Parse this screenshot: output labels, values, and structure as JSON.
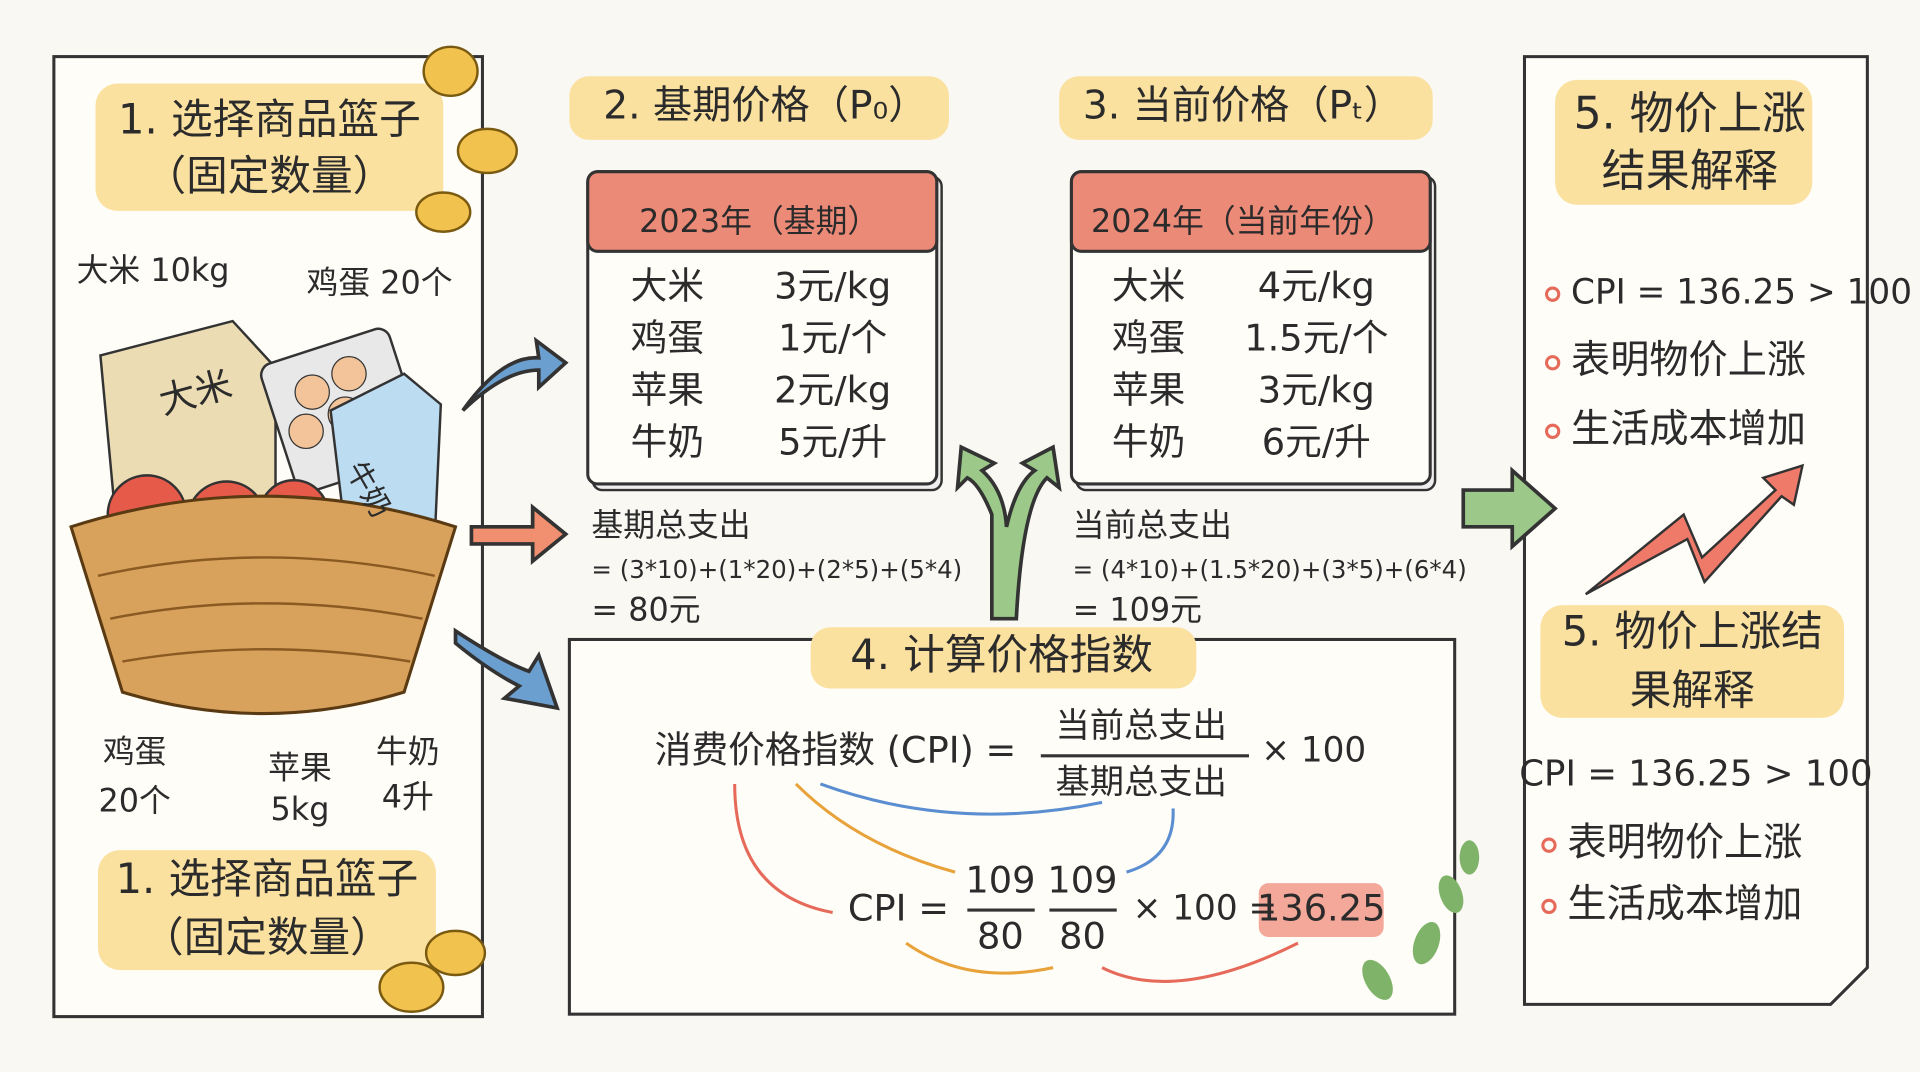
{
  "basket": {
    "title": [
      "1. 选择商品篮子",
      "（固定数量）"
    ],
    "items_top": [
      "大米 10kg",
      "鸡蛋 20个"
    ],
    "bag_label": "大米",
    "carton_label": "牛奶",
    "items_bottom": [
      [
        "鸡蛋",
        "20个"
      ],
      [
        "苹果",
        "5kg"
      ],
      [
        "牛奶",
        "4升"
      ]
    ],
    "footer_title": [
      "1. 选择商品篮子",
      "（固定数量）"
    ]
  },
  "base_prices": {
    "title": "2. 基期价格（P₀）",
    "calendar_header": "2023年（基期）",
    "rows": [
      [
        "大米",
        "3元/kg"
      ],
      [
        "鸡蛋",
        "1元/个"
      ],
      [
        "苹果",
        "2元/kg"
      ],
      [
        "牛奶",
        "5元/升"
      ]
    ],
    "total_label": "基期总支出",
    "formula": "= (3*10)+(1*20)+(2*5)+(5*4)",
    "result": "= 80元"
  },
  "current_prices": {
    "title": "3. 当前价格（Pₜ）",
    "calendar_header": "2024年（当前年份）",
    "rows": [
      [
        "大米",
        "4元/kg"
      ],
      [
        "鸡蛋",
        "1.5元/个"
      ],
      [
        "苹果",
        "3元/kg"
      ],
      [
        "牛奶",
        "6元/升"
      ]
    ],
    "total_label": "当前总支出",
    "formula": "= (4*10)+(1.5*20)+(3*5)+(6*4)",
    "result": "= 109元"
  },
  "index": {
    "title": "4. 计算价格指数",
    "definition_left": "消费价格指数 (CPI) =",
    "numerator": "当前总支出",
    "denominator": "基期总支出",
    "multiplier": "× 100",
    "calc_left": "CPI =",
    "fractions": [
      [
        "109",
        "80"
      ],
      [
        "109",
        "80"
      ]
    ],
    "calc_mid": "× 100 =",
    "result": "136.25"
  },
  "conclusion": {
    "title": [
      "5. 物价上涨",
      "结果解释"
    ],
    "bullets": [
      "CPI = 136.25 > 100",
      "表明物价上涨",
      "生活成本增加"
    ],
    "repeat_title": [
      "5. 物价上涨结",
      "果解释"
    ],
    "repeat_statement": "CPI = 136.25 > 100",
    "repeat_bullets": [
      "表明物价上涨",
      "生活成本增加"
    ]
  }
}
